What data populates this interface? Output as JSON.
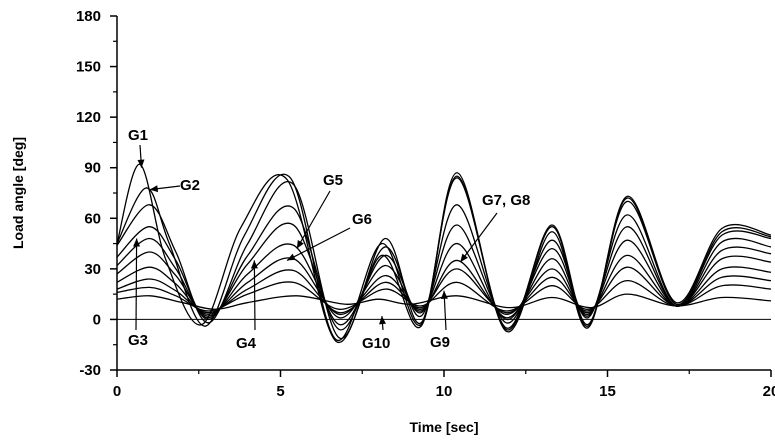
{
  "chart_data": {
    "type": "line",
    "title": "",
    "xlabel": "Time [sec]",
    "ylabel": "Load angle [deg]",
    "xlim": [
      0,
      20
    ],
    "ylim": [
      -30,
      180
    ],
    "xticks": [
      0,
      5,
      10,
      15,
      20
    ],
    "yticks": [
      -30,
      0,
      30,
      60,
      90,
      120,
      150,
      180
    ],
    "grid": false,
    "reference_line_y": 0,
    "series": [
      {
        "x": [
          0,
          0.7,
          1.5,
          2.6,
          3.8,
          5.2,
          6.7,
          8.1,
          9.3,
          10.4,
          11.9,
          13.3,
          14.4,
          15.6,
          17.1,
          18.5,
          20
        ],
        "y": [
          45,
          92,
          35,
          -3,
          55,
          83,
          -13,
          38,
          -4,
          87,
          -7,
          52,
          -5,
          73,
          10,
          54,
          50
        ]
      },
      {
        "x": [
          0,
          0.9,
          1.6,
          2.7,
          3.9,
          5.3,
          6.7,
          8.1,
          9.3,
          10.4,
          11.9,
          13.3,
          14.4,
          15.6,
          17.1,
          18.5,
          20
        ],
        "y": [
          45,
          78,
          45,
          -4,
          50,
          84,
          -12,
          45,
          -3,
          85,
          -6,
          55,
          -4,
          72,
          9,
          52,
          49
        ]
      },
      {
        "x": [
          0,
          1.0,
          1.8,
          2.8,
          4.0,
          5.4,
          6.8,
          8.2,
          9.3,
          10.4,
          11.9,
          13.3,
          14.4,
          15.6,
          17.1,
          18.5,
          20
        ],
        "y": [
          44,
          68,
          40,
          -2,
          45,
          80,
          -11,
          48,
          -2,
          84,
          -5,
          56,
          -3,
          70,
          9,
          50,
          48
        ]
      },
      {
        "x": [
          0,
          1.0,
          1.8,
          2.8,
          4.0,
          5.4,
          6.8,
          8.2,
          9.3,
          10.4,
          11.9,
          13.3,
          14.4,
          15.6,
          17.1,
          18.5,
          20
        ],
        "y": [
          37,
          55,
          35,
          0,
          38,
          66,
          -6,
          43,
          2,
          68,
          -2,
          47,
          1,
          62,
          8,
          46,
          43
        ]
      },
      {
        "x": [
          0,
          1.0,
          1.8,
          2.8,
          4.0,
          5.4,
          6.8,
          8.2,
          9.3,
          10.4,
          11.9,
          13.3,
          14.4,
          15.6,
          17.1,
          18.5,
          20
        ],
        "y": [
          32,
          48,
          30,
          1,
          33,
          56,
          -3,
          38,
          4,
          56,
          0,
          42,
          2,
          55,
          8,
          41,
          39
        ]
      },
      {
        "x": [
          0,
          1.0,
          1.8,
          2.8,
          4.0,
          5.4,
          6.8,
          8.2,
          9.3,
          10.4,
          11.9,
          13.3,
          14.4,
          15.6,
          17.1,
          18.5,
          20
        ],
        "y": [
          27,
          40,
          26,
          2,
          27,
          44,
          1,
          32,
          5,
          45,
          1,
          36,
          3,
          47,
          8,
          36,
          34
        ]
      },
      {
        "x": [
          0,
          1.0,
          1.8,
          2.8,
          4.0,
          5.4,
          6.8,
          8.2,
          9.3,
          10.4,
          11.9,
          13.3,
          14.4,
          15.6,
          17.1,
          18.5,
          20
        ],
        "y": [
          22,
          31,
          21,
          3,
          22,
          36,
          3,
          26,
          6,
          35,
          3,
          30,
          4,
          38,
          8,
          30,
          28
        ]
      },
      {
        "x": [
          0,
          1.0,
          1.8,
          2.8,
          4.0,
          5.4,
          6.8,
          8.2,
          9.3,
          10.4,
          11.9,
          13.3,
          14.4,
          15.6,
          17.1,
          18.5,
          20
        ],
        "y": [
          18,
          24,
          17,
          4,
          18,
          29,
          4,
          22,
          7,
          30,
          4,
          25,
          5,
          31,
          8,
          25,
          23
        ]
      },
      {
        "x": [
          0,
          1.0,
          1.8,
          2.8,
          4.0,
          5.4,
          6.8,
          8.2,
          9.3,
          10.4,
          11.9,
          13.3,
          14.4,
          15.6,
          17.1,
          18.5,
          20
        ],
        "y": [
          16,
          19,
          14,
          5,
          15,
          22,
          6,
          18,
          8,
          22,
          5,
          20,
          6,
          23,
          8,
          20,
          18
        ]
      },
      {
        "x": [
          0,
          1.0,
          2.0,
          3.0,
          4.0,
          5.5,
          7.0,
          8.0,
          9.0,
          10.4,
          12.0,
          13.3,
          14.5,
          15.6,
          17.1,
          18.5,
          20
        ],
        "y": [
          12,
          14,
          10,
          6,
          10,
          14,
          9,
          12,
          9,
          14,
          7,
          13,
          7,
          15,
          8,
          13,
          11
        ]
      }
    ],
    "annotations": [
      {
        "label": "G1",
        "target": [
          0.75,
          90
        ]
      },
      {
        "label": "G2",
        "target": [
          1.0,
          77
        ]
      },
      {
        "label": "G3",
        "target": [
          0.6,
          48
        ]
      },
      {
        "label": "G4",
        "target": [
          4.2,
          35
        ]
      },
      {
        "label": "G5",
        "target": [
          5.5,
          42
        ]
      },
      {
        "label": "G6",
        "target": [
          5.2,
          35
        ]
      },
      {
        "label": "G7, G8",
        "target": [
          10.5,
          34
        ]
      },
      {
        "label": "G9",
        "target": [
          10.0,
          17
        ]
      },
      {
        "label": "G10",
        "target": [
          8.1,
          2
        ]
      }
    ]
  }
}
